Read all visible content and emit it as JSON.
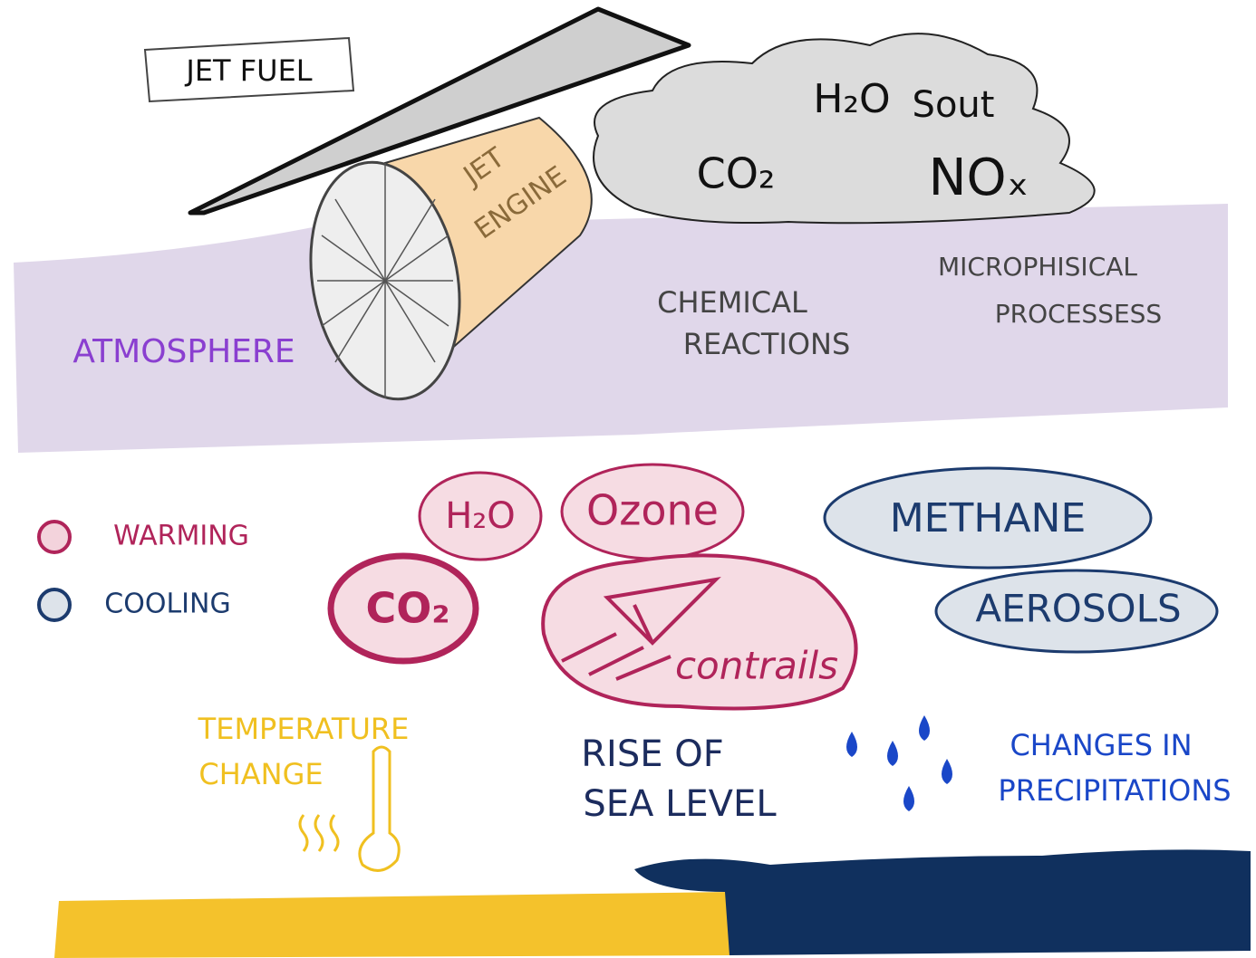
{
  "header": {
    "fuel": "JET FUEL",
    "engine": [
      "JET",
      "ENGINE"
    ]
  },
  "emissions": [
    "H₂O",
    "Sout",
    "CO₂",
    "NOₓ"
  ],
  "atmosphere": {
    "label": "ATMOSPHERE",
    "chemical": [
      "CHEMICAL",
      "REACTIONS"
    ],
    "micro": [
      "MICROPHISICAL",
      "PROCESSESS"
    ]
  },
  "legend": [
    "WARMING",
    "COOLING"
  ],
  "effects": {
    "warming": [
      "H₂O",
      "Ozone",
      "CO₂",
      "contrails"
    ],
    "cooling": [
      "METHANE",
      "AEROSOLS"
    ]
  },
  "impacts": {
    "temperature": [
      "TEMPERATURE",
      "CHANGE"
    ],
    "sea": [
      "RISE OF",
      "SEA LEVEL"
    ],
    "precipitation": [
      "CHANGES IN",
      "PRECIPITATIONS"
    ]
  }
}
